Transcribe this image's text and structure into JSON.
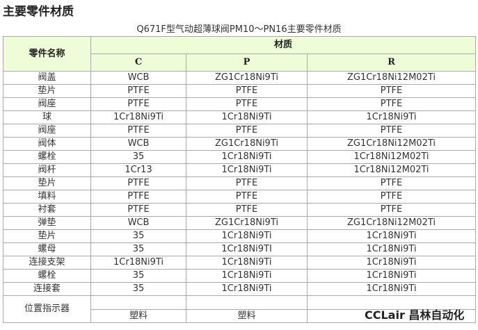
{
  "heading": "主要零件材质",
  "caption": "Q671F型气动超薄球阀PM10～PN16主要零件材质",
  "table": {
    "col_name": "零件名称",
    "col_group": "材质",
    "cols": [
      "C",
      "P",
      "R"
    ],
    "rows": [
      [
        "阀盖",
        "WCB",
        "ZG1Cr18Ni9Ti",
        "ZG1Cr18Ni12M02Ti"
      ],
      [
        "垫片",
        "PTFE",
        "PTFE",
        "PTFE"
      ],
      [
        "阀座",
        "PTFE",
        "PTFE",
        "PTFE"
      ],
      [
        "球",
        "1Cr18Ni9Ti",
        "1Cr18Ni9Ti",
        "1Cr18Ni9Ti"
      ],
      [
        "阀座",
        "PTFE",
        "PTFE",
        "PTFE"
      ],
      [
        "阀体",
        "WCB",
        "ZG1Cr18Ni9Ti",
        "ZG1Cr18Ni12M02Ti"
      ],
      [
        "螺栓",
        "35",
        "1Cr18Ni9Ti",
        "1Cr18Ni12M02Ti"
      ],
      [
        "阀杆",
        "1Cr13",
        "1Cr18Ni9Ti",
        "1Cr18Ni12M02Ti"
      ],
      [
        "垫片",
        "PTFE",
        "PTFE",
        "PTFE"
      ],
      [
        "填料",
        "PTFE",
        "PTFE",
        "PTFE"
      ],
      [
        "衬套",
        "PTFE",
        "PTFE",
        "PTFE"
      ],
      [
        "弹垫",
        "WCB",
        "ZG1Cr18Ni9Ti",
        "ZG1Cr18Ni12M02Ti"
      ],
      [
        "垫片",
        "35",
        "1Cr18Ni9Ti",
        "1Cr18Ni9Ti"
      ],
      [
        "螺母",
        "35",
        "1Cr18Ni9TI",
        "1Cr18Ni9Ti"
      ],
      [
        "连接支架",
        "1Cr18Ni9Ti",
        "1Cr18Ni9Ti",
        "1Cr18Ni9Ti"
      ],
      [
        "螺栓",
        "35",
        "1Cr18Ni9Ti",
        "1Cr18Ni9Ti"
      ],
      [
        "连接套",
        "35",
        "1Cr18Ni9Ti",
        "1Cr18Ni9Ti"
      ]
    ],
    "last_row": {
      "name": "位置指示器",
      "values": [
        "塑料",
        "塑料",
        ""
      ]
    }
  },
  "watermark": "CCLair 昌林自动化"
}
